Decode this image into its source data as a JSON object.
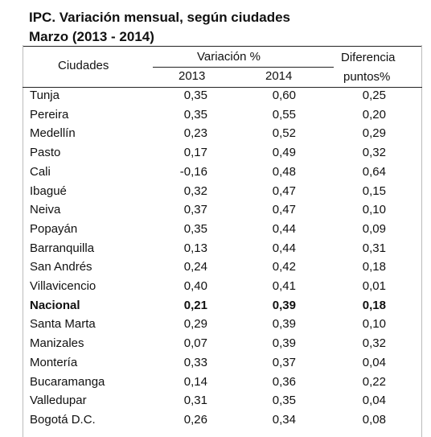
{
  "header": {
    "title": "IPC. Variación mensual, según ciudades",
    "subtitle": "Marzo (2013 - 2014)"
  },
  "table": {
    "columns": {
      "city": "Ciudades",
      "variation": "Variación %",
      "years": [
        "2013",
        "2014"
      ],
      "difference": [
        "Diferencia",
        "puntos%"
      ]
    },
    "bold_row": 11,
    "rows": [
      [
        "Tunja",
        "0,35",
        "0,60",
        "0,25"
      ],
      [
        "Pereira",
        "0,35",
        "0,55",
        "0,20"
      ],
      [
        "Medellín",
        "0,23",
        "0,52",
        "0,29"
      ],
      [
        "Pasto",
        "0,17",
        "0,49",
        "0,32"
      ],
      [
        "Cali",
        "-0,16",
        "0,48",
        "0,64"
      ],
      [
        "Ibagué",
        "0,32",
        "0,47",
        "0,15"
      ],
      [
        "Neiva",
        "0,37",
        "0,47",
        "0,10"
      ],
      [
        "Popayán",
        "0,35",
        "0,44",
        "0,09"
      ],
      [
        "Barranquilla",
        "0,13",
        "0,44",
        "0,31"
      ],
      [
        "San Andrés",
        "0,24",
        "0,42",
        "0,18"
      ],
      [
        "Villavicencio",
        "0,40",
        "0,41",
        "0,01"
      ],
      [
        "Nacional",
        "0,21",
        "0,39",
        "0,18"
      ],
      [
        "Santa Marta",
        "0,29",
        "0,39",
        "0,10"
      ],
      [
        "Manizales",
        "0,07",
        "0,39",
        "0,32"
      ],
      [
        "Montería",
        "0,33",
        "0,37",
        "0,04"
      ],
      [
        "Bucaramanga",
        "0,14",
        "0,36",
        "0,22"
      ],
      [
        "Valledupar",
        "0,31",
        "0,35",
        "0,04"
      ],
      [
        "Bogotá D.C.",
        "0,26",
        "0,34",
        "0,08"
      ]
    ]
  }
}
